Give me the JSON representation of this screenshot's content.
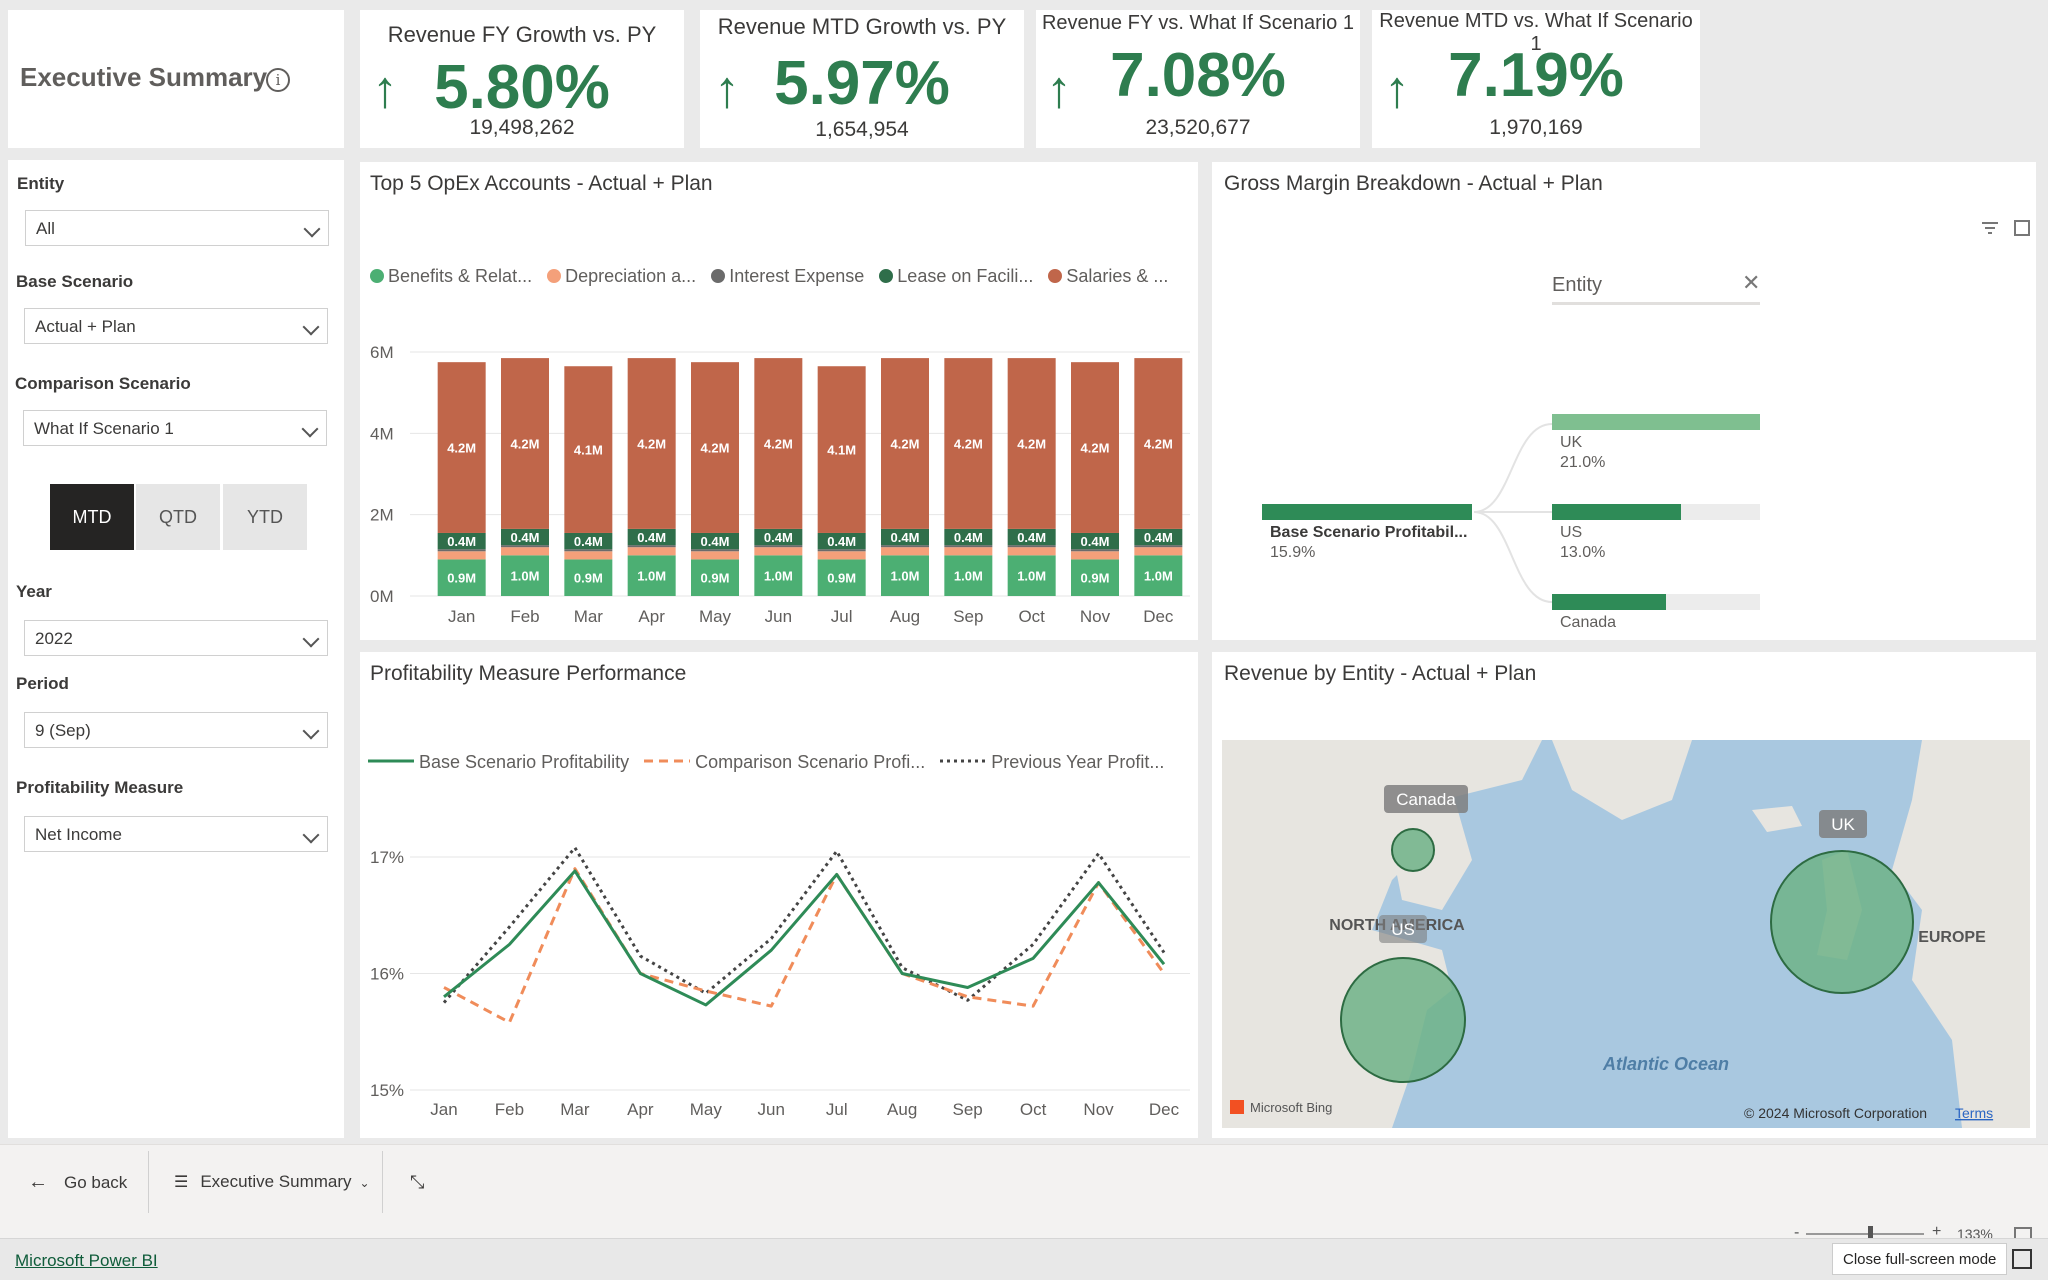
{
  "header": {
    "title": "Executive Summary",
    "info_icon": "info-icon"
  },
  "kpis": [
    {
      "title": "Revenue FY Growth vs. PY",
      "arrow": "↑",
      "value": "5.80%",
      "sub": "19,498,262"
    },
    {
      "title": "Revenue MTD Growth vs. PY",
      "arrow": "↑",
      "value": "5.97%",
      "sub": "1,654,954"
    },
    {
      "title": "Revenue FY vs. What If Scenario 1",
      "arrow": "↑",
      "value": "7.08%",
      "sub": "23,520,677"
    },
    {
      "title": "Revenue MTD vs. What If Scenario 1",
      "arrow": "↑",
      "value": "7.19%",
      "sub": "1,970,169"
    }
  ],
  "filters": {
    "entity": {
      "label": "Entity",
      "value": "All"
    },
    "base": {
      "label": "Base Scenario",
      "value": "Actual + Plan"
    },
    "comparison": {
      "label": "Comparison Scenario",
      "value": "What If Scenario 1"
    },
    "periods": [
      "MTD",
      "QTD",
      "YTD"
    ],
    "period_selected": "MTD",
    "year": {
      "label": "Year",
      "value": "2022"
    },
    "period": {
      "label": "Period",
      "value": "9 (Sep)"
    },
    "measure": {
      "label": "Profitability Measure",
      "value": "Net Income"
    }
  },
  "opex": {
    "title": "Top 5 OpEx Accounts -  Actual + Plan",
    "legend": [
      {
        "label": "Benefits & Relat...",
        "color": "#4caf73"
      },
      {
        "label": "Depreciation a...",
        "color": "#f4a07a"
      },
      {
        "label": "Interest Expense",
        "color": "#6b6b6b"
      },
      {
        "label": "Lease on Facili...",
        "color": "#2f6e4a"
      },
      {
        "label": "Salaries & ...",
        "color": "#c0664a"
      }
    ]
  },
  "gross_margin": {
    "title": "Gross Margin Breakdown -  Actual + Plan",
    "entity_header": "Entity",
    "root_label": "Base Scenario Profitabil...",
    "root_value": "15.9%",
    "nodes": [
      {
        "label": "UK",
        "value": "21.0%",
        "fraction": 1.0
      },
      {
        "label": "US",
        "value": "13.0%",
        "fraction": 0.62
      },
      {
        "label": "Canada",
        "value": "",
        "fraction": 0.55
      }
    ]
  },
  "profitability": {
    "title": "Profitability Measure Performance",
    "legend": [
      {
        "label": "Base Scenario Profitability",
        "color": "#2e8b57",
        "style": "solid"
      },
      {
        "label": "Comparison Scenario Profi...",
        "color": "#f08c5a",
        "style": "dashed"
      },
      {
        "label": "Previous Year Profit...",
        "color": "#444444",
        "style": "dotted"
      }
    ]
  },
  "map": {
    "title": "Revenue by Entity -  Actual + Plan",
    "labels": {
      "canada": "Canada",
      "us": "US",
      "uk": "UK",
      "north_america": "NORTH AMERICA",
      "europe": "EUROPE",
      "ocean": "Atlantic Ocean"
    },
    "attribution": "© 2024 Microsoft Corporation",
    "terms": "Terms",
    "bing": "Microsoft Bing"
  },
  "footer": {
    "go_back": "Go back",
    "page": "Executive Summary",
    "zoom": "133%",
    "brand": "Microsoft Power BI",
    "close_fullscreen": "Close full-screen mode"
  },
  "chart_data": [
    {
      "type": "bar",
      "stacked": true,
      "categories": [
        "Jan",
        "Feb",
        "Mar",
        "Apr",
        "May",
        "Jun",
        "Jul",
        "Aug",
        "Sep",
        "Oct",
        "Nov",
        "Dec"
      ],
      "ylim": [
        0,
        6000000
      ],
      "yticks": [
        "0M",
        "2M",
        "4M",
        "6M"
      ],
      "series": [
        {
          "name": "Benefits & Relat...",
          "values": [
            0.9,
            1.0,
            0.9,
            1.0,
            0.9,
            1.0,
            0.9,
            1.0,
            1.0,
            1.0,
            0.9,
            1.0
          ],
          "labels": [
            "0.9M",
            "1.0M",
            "0.9M",
            "1.0M",
            "0.9M",
            "1.0M",
            "0.9M",
            "1.0M",
            "1.0M",
            "1.0M",
            "0.9M",
            "1.0M"
          ]
        },
        {
          "name": "Depreciation a...",
          "values": [
            0.2,
            0.2,
            0.2,
            0.2,
            0.2,
            0.2,
            0.2,
            0.2,
            0.2,
            0.2,
            0.2,
            0.2
          ]
        },
        {
          "name": "Interest Expense",
          "values": [
            0.05,
            0.05,
            0.05,
            0.05,
            0.05,
            0.05,
            0.05,
            0.05,
            0.05,
            0.05,
            0.05,
            0.05
          ]
        },
        {
          "name": "Lease on Facili...",
          "values": [
            0.4,
            0.4,
            0.4,
            0.4,
            0.4,
            0.4,
            0.4,
            0.4,
            0.4,
            0.4,
            0.4,
            0.4
          ],
          "labels": [
            "0.4M",
            "0.4M",
            "0.4M",
            "0.4M",
            "0.4M",
            "0.4M",
            "0.4M",
            "0.4M",
            "0.4M",
            "0.4M",
            "0.4M",
            "0.4M"
          ]
        },
        {
          "name": "Salaries & ...",
          "values": [
            4.2,
            4.2,
            4.1,
            4.2,
            4.2,
            4.2,
            4.1,
            4.2,
            4.2,
            4.2,
            4.2,
            4.2
          ],
          "labels": [
            "4.2M",
            "4.2M",
            "4.1M",
            "4.2M",
            "4.2M",
            "4.2M",
            "4.1M",
            "4.2M",
            "4.2M",
            "4.2M",
            "4.2M",
            "4.2M"
          ]
        }
      ]
    },
    {
      "type": "line",
      "categories": [
        "Jan",
        "Feb",
        "Mar",
        "Apr",
        "May",
        "Jun",
        "Jul",
        "Aug",
        "Sep",
        "Oct",
        "Nov",
        "Dec"
      ],
      "ylim": [
        15,
        17.5
      ],
      "yticks": [
        "15%",
        "16%",
        "17%"
      ],
      "series": [
        {
          "name": "Base Scenario Profitability",
          "values": [
            15.8,
            16.25,
            16.88,
            16.0,
            15.73,
            16.2,
            16.85,
            16.0,
            15.88,
            16.13,
            16.78,
            16.08
          ]
        },
        {
          "name": "Comparison Scenario Profi...",
          "values": [
            15.88,
            15.58,
            16.9,
            16.0,
            15.85,
            15.72,
            16.85,
            16.0,
            15.8,
            15.72,
            16.78,
            16.0
          ]
        },
        {
          "name": "Previous Year Profit...",
          "values": [
            15.75,
            16.4,
            17.08,
            16.15,
            15.83,
            16.3,
            17.05,
            16.05,
            15.77,
            16.25,
            17.03,
            16.18
          ]
        }
      ]
    }
  ]
}
